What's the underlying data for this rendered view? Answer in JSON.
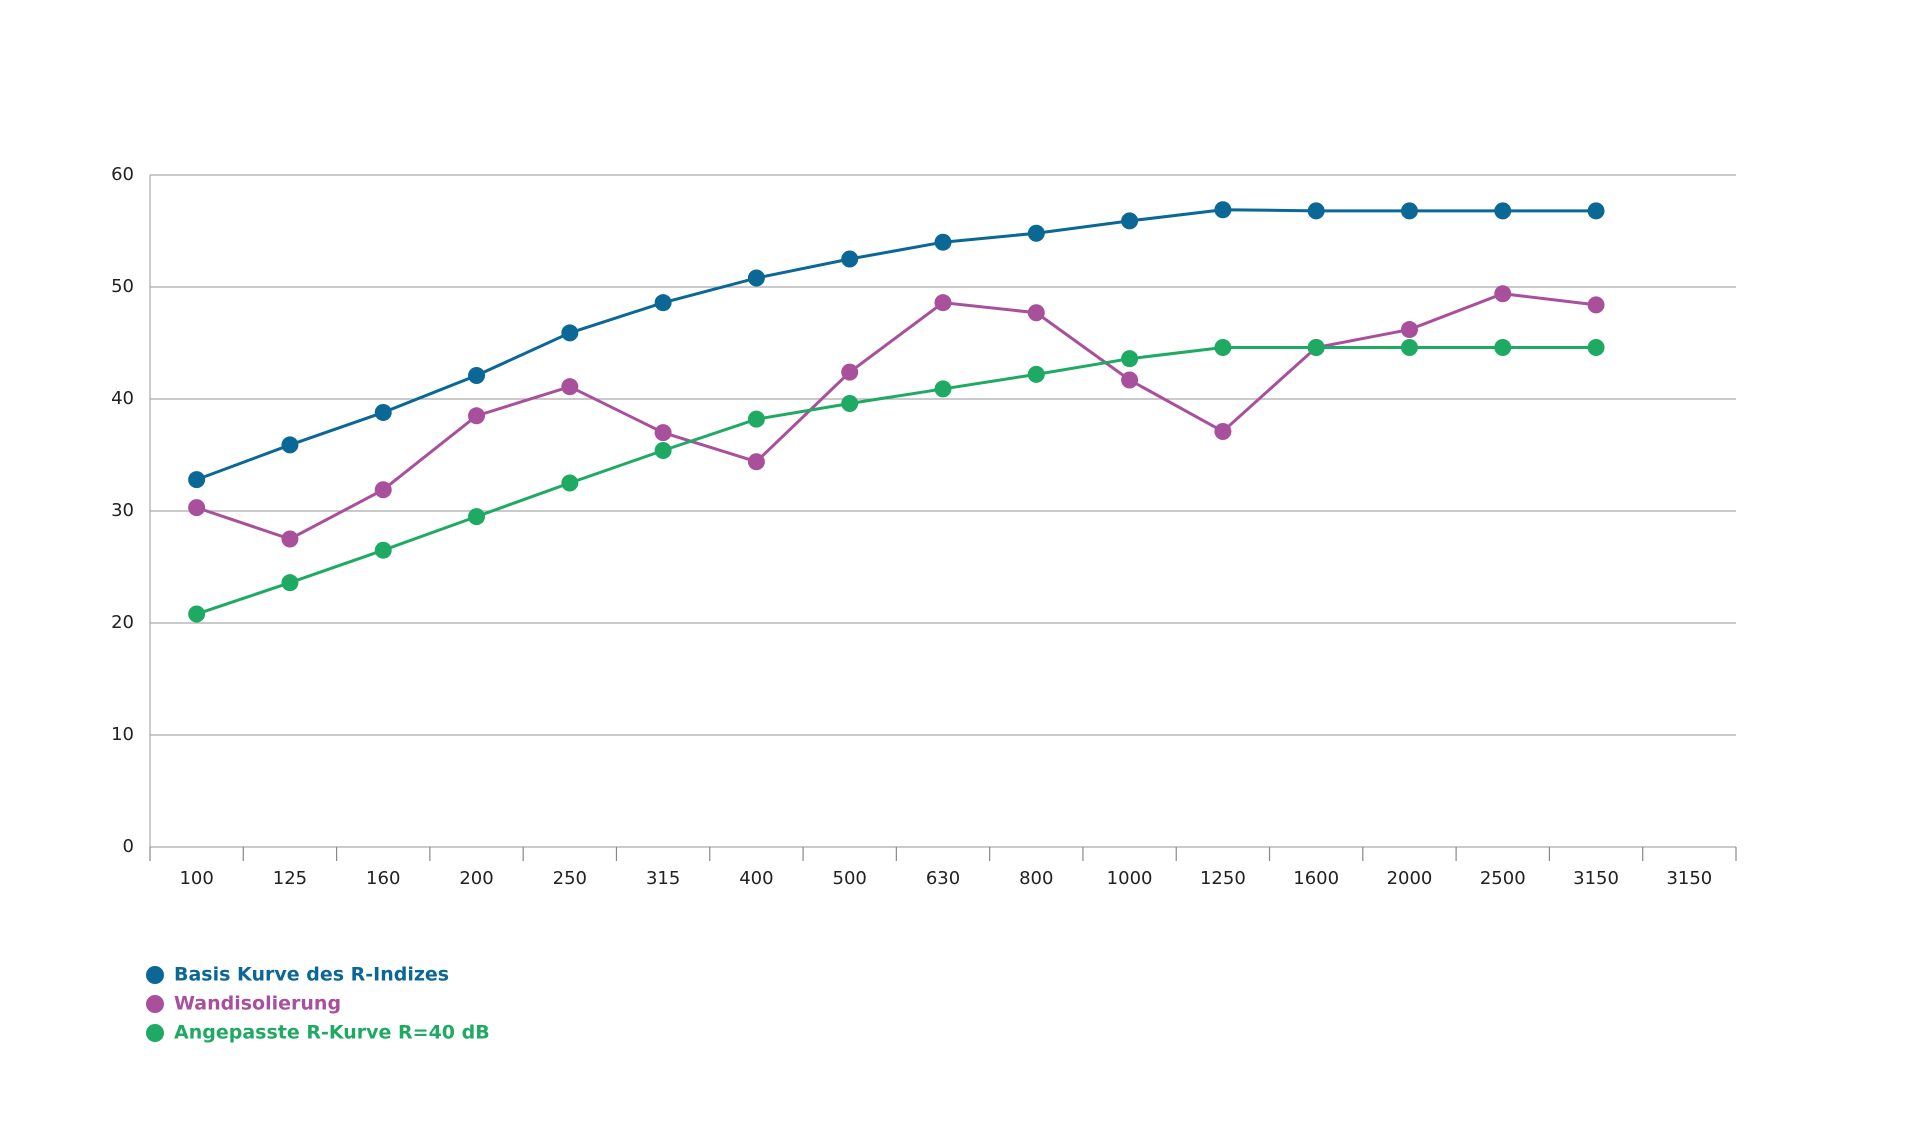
{
  "chart_data": {
    "type": "line",
    "categories": [
      "100",
      "125",
      "160",
      "200",
      "250",
      "315",
      "400",
      "500",
      "630",
      "800",
      "1000",
      "1250",
      "1600",
      "2000",
      "2500",
      "3150",
      "3150"
    ],
    "series": [
      {
        "name": "Basis Kurve des R-Indizes",
        "color": "#0b6896",
        "values": [
          32.8,
          35.9,
          38.8,
          42.1,
          45.9,
          48.6,
          50.8,
          52.5,
          54.0,
          54.8,
          55.9,
          56.9,
          56.8,
          56.8,
          56.8,
          56.8,
          null
        ]
      },
      {
        "name": "Wandisolierung",
        "color": "#a8509c",
        "values": [
          30.3,
          27.5,
          31.9,
          38.5,
          41.1,
          37.0,
          34.4,
          42.4,
          48.6,
          47.7,
          41.7,
          37.1,
          44.6,
          46.2,
          49.4,
          48.4,
          null
        ]
      },
      {
        "name": "Angepasste R-Kurve R=40 dB",
        "color": "#1faa64",
        "values": [
          20.8,
          23.6,
          26.5,
          29.5,
          32.5,
          35.4,
          38.2,
          39.6,
          40.9,
          42.2,
          43.6,
          44.6,
          44.6,
          44.6,
          44.6,
          44.6,
          null
        ]
      }
    ],
    "ylim": [
      0,
      60
    ],
    "yticks": [
      0,
      10,
      20,
      30,
      40,
      50,
      60
    ],
    "grid": true,
    "legend": "bottom-left"
  }
}
